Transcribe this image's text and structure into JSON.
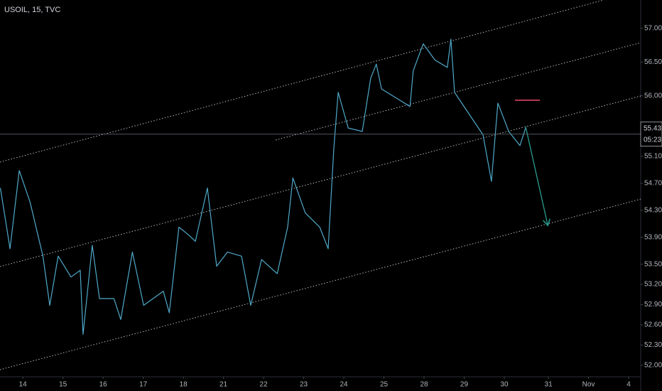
{
  "chart_data": {
    "type": "line",
    "title": "USOIL, 15, TVC",
    "color": "#4fa9c9",
    "x": [
      -0.56,
      -0.32,
      -0.09,
      0.18,
      0.5,
      0.67,
      0.88,
      1.2,
      1.43,
      1.5,
      1.73,
      1.91,
      2.27,
      2.44,
      2.73,
      3.01,
      3.5,
      3.65,
      3.89,
      4.12,
      4.3,
      4.6,
      4.83,
      5.1,
      5.45,
      5.68,
      5.95,
      6.34,
      6.6,
      6.73,
      7.04,
      7.4,
      7.61,
      7.75,
      7.86,
      8.11,
      8.46,
      8.67,
      8.81,
      8.94,
      9.35,
      9.65,
      9.73,
      9.98,
      10.27,
      10.58,
      10.67,
      10.76,
      11.12,
      11.47,
      11.68,
      11.84,
      12.11,
      12.39,
      12.53
    ],
    "values": [
      54.63,
      53.73,
      54.89,
      54.42,
      53.62,
      52.89,
      53.62,
      53.31,
      53.41,
      52.46,
      53.78,
      52.99,
      52.99,
      52.68,
      53.68,
      52.89,
      53.1,
      52.78,
      54.05,
      53.94,
      53.84,
      54.63,
      53.47,
      53.68,
      53.62,
      52.89,
      53.57,
      53.36,
      54.05,
      54.78,
      54.26,
      54.05,
      53.73,
      55.21,
      56.05,
      55.52,
      55.47,
      56.26,
      56.47,
      56.1,
      55.95,
      55.84,
      56.37,
      56.77,
      56.53,
      56.42,
      56.84,
      56.05,
      55.73,
      55.42,
      54.73,
      55.89,
      55.47,
      55.26,
      55.52
    ],
    "last_price": 55.43,
    "countdown": "05:23",
    "xlim": [
      -0.57,
      15.4
    ],
    "xticks": [
      {
        "value": 0,
        "label": "14"
      },
      {
        "value": 1,
        "label": "15"
      },
      {
        "value": 2,
        "label": "16"
      },
      {
        "value": 3,
        "label": "17"
      },
      {
        "value": 4,
        "label": "18"
      },
      {
        "value": 5,
        "label": "21"
      },
      {
        "value": 6,
        "label": "22"
      },
      {
        "value": 7,
        "label": "23"
      },
      {
        "value": 8,
        "label": "24"
      },
      {
        "value": 9,
        "label": "25"
      },
      {
        "value": 10,
        "label": "28"
      },
      {
        "value": 11,
        "label": "29"
      },
      {
        "value": 12,
        "label": "30"
      },
      {
        "value": 13.1,
        "label": "31"
      },
      {
        "value": 14.1,
        "label": "Nov"
      },
      {
        "value": 15.1,
        "label": "4"
      }
    ],
    "ylim": [
      51.83,
      57.42
    ],
    "yticks": [
      {
        "value": 57,
        "label": "57.00"
      },
      {
        "value": 56.5,
        "label": "56.50"
      },
      {
        "value": 56,
        "label": "56.00"
      },
      {
        "value": 55.1,
        "label": "55.10"
      },
      {
        "value": 54.7,
        "label": "54.70"
      },
      {
        "value": 54.3,
        "label": "54.30"
      },
      {
        "value": 53.9,
        "label": "53.90"
      },
      {
        "value": 53.5,
        "label": "53.50"
      },
      {
        "value": 53.2,
        "label": "53.20"
      },
      {
        "value": 52.9,
        "label": "52.90"
      },
      {
        "value": 52.6,
        "label": "52.60"
      },
      {
        "value": 52.3,
        "label": "52.30"
      },
      {
        "value": 52,
        "label": "52.00"
      }
    ]
  }
}
